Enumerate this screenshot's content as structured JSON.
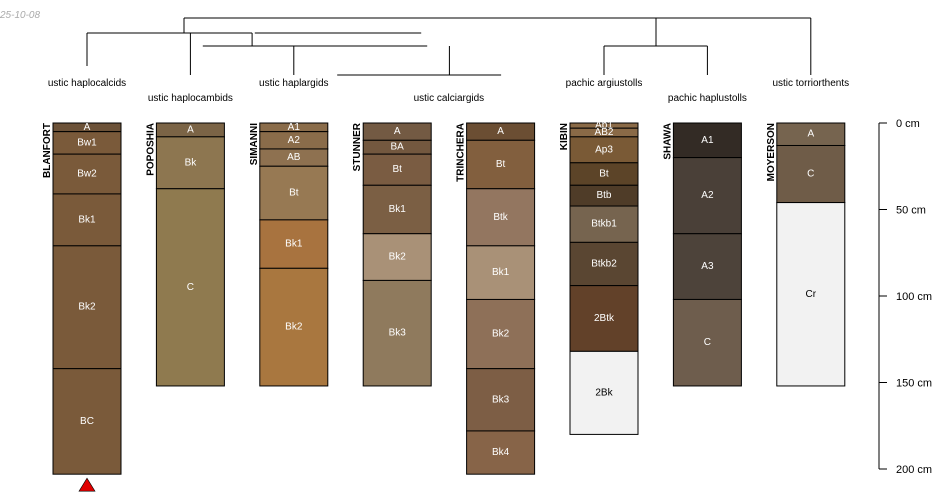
{
  "date_stamp": "25-10-08",
  "colors": {
    "dendrogram": "#000000",
    "outline": "#000000",
    "light_text": "#ffffff",
    "dark_text": "#000000",
    "bottom_marker": "#e00000"
  },
  "chart_data": {
    "type": "soil-profile-sketch",
    "title": "",
    "depth_unit": "cm",
    "depth_range": [
      0,
      200
    ],
    "depth_axis": {
      "ticks": [
        0,
        50,
        100,
        150,
        200
      ],
      "tick_labels": [
        "0 cm",
        "50 cm",
        "100 cm",
        "150 cm",
        "200 cm"
      ]
    },
    "groups": [
      {
        "name": "ustic haplocalcids",
        "members": [
          "BLANFORT"
        ]
      },
      {
        "name": "ustic haplocambids",
        "members": [
          "POPOSHIA"
        ]
      },
      {
        "name": "ustic haplargids",
        "members": [
          "SIMANNI"
        ]
      },
      {
        "name": "ustic calciargids",
        "members": [
          "STUNNER",
          "TRINCHERA"
        ]
      },
      {
        "name": "pachic argiustolls",
        "members": [
          "KIBIN"
        ]
      },
      {
        "name": "pachic haplustolls",
        "members": [
          "SHAWA"
        ]
      },
      {
        "name": "ustic torriorthents",
        "members": [
          "MOYERSON"
        ]
      }
    ],
    "profiles": [
      {
        "name": "BLANFORT",
        "bottom_marker": true,
        "horizons": [
          {
            "name": "A",
            "top": 0,
            "bottom": 5,
            "color": "#6c5238"
          },
          {
            "name": "Bw1",
            "top": 5,
            "bottom": 18,
            "color": "#7a5a3a"
          },
          {
            "name": "Bw2",
            "top": 18,
            "bottom": 41,
            "color": "#7a5a3a"
          },
          {
            "name": "Bk1",
            "top": 41,
            "bottom": 71,
            "color": "#7a5a3a"
          },
          {
            "name": "Bk2",
            "top": 71,
            "bottom": 142,
            "color": "#7a5a3a"
          },
          {
            "name": "BC",
            "top": 142,
            "bottom": 203,
            "color": "#7a5a3a"
          }
        ]
      },
      {
        "name": "POPOSHIA",
        "bottom_marker": false,
        "horizons": [
          {
            "name": "A",
            "top": 0,
            "bottom": 8,
            "color": "#7b6446"
          },
          {
            "name": "Bk",
            "top": 8,
            "bottom": 38,
            "color": "#8d7650"
          },
          {
            "name": "C",
            "top": 38,
            "bottom": 152,
            "color": "#8f7a4f"
          }
        ]
      },
      {
        "name": "SIMANNI",
        "bottom_marker": false,
        "horizons": [
          {
            "name": "A1",
            "top": 0,
            "bottom": 5,
            "color": "#8a6c4a"
          },
          {
            "name": "A2",
            "top": 5,
            "bottom": 15,
            "color": "#8a6c4a"
          },
          {
            "name": "AB",
            "top": 15,
            "bottom": 25,
            "color": "#8e7150"
          },
          {
            "name": "Bt",
            "top": 25,
            "bottom": 56,
            "color": "#977953"
          },
          {
            "name": "Bk1",
            "top": 56,
            "bottom": 84,
            "color": "#a8733f"
          },
          {
            "name": "Bk2",
            "top": 84,
            "bottom": 152,
            "color": "#a9773f"
          }
        ]
      },
      {
        "name": "STUNNER",
        "bottom_marker": false,
        "horizons": [
          {
            "name": "A",
            "top": 0,
            "bottom": 10,
            "color": "#735a43"
          },
          {
            "name": "BA",
            "top": 10,
            "bottom": 18,
            "color": "#73583f"
          },
          {
            "name": "Bt",
            "top": 18,
            "bottom": 36,
            "color": "#7a5c42"
          },
          {
            "name": "Bk1",
            "top": 36,
            "bottom": 64,
            "color": "#7b5f44"
          },
          {
            "name": "Bk2",
            "top": 64,
            "bottom": 91,
            "color": "#a99177"
          },
          {
            "name": "Bk3",
            "top": 91,
            "bottom": 152,
            "color": "#8f7a5d"
          }
        ]
      },
      {
        "name": "TRINCHERA",
        "bottom_marker": false,
        "horizons": [
          {
            "name": "A",
            "top": 0,
            "bottom": 10,
            "color": "#6b4e33"
          },
          {
            "name": "Bt",
            "top": 10,
            "bottom": 38,
            "color": "#825f3e"
          },
          {
            "name": "Btk",
            "top": 38,
            "bottom": 71,
            "color": "#937660"
          },
          {
            "name": "Bk1",
            "top": 71,
            "bottom": 102,
            "color": "#a99177"
          },
          {
            "name": "Bk2",
            "top": 102,
            "bottom": 142,
            "color": "#8e7058"
          },
          {
            "name": "Bk3",
            "top": 142,
            "bottom": 178,
            "color": "#7d5e45"
          },
          {
            "name": "Bk4",
            "top": 178,
            "bottom": 203,
            "color": "#876448"
          }
        ]
      },
      {
        "name": "KIBIN",
        "bottom_marker": false,
        "horizons": [
          {
            "name": "Ap1",
            "top": 0,
            "bottom": 3,
            "color": "#8a6a47"
          },
          {
            "name": "AB2",
            "top": 3,
            "bottom": 8,
            "color": "#8a6a47"
          },
          {
            "name": "Ap3",
            "top": 8,
            "bottom": 23,
            "color": "#7a5a36"
          },
          {
            "name": "Bt",
            "top": 23,
            "bottom": 36,
            "color": "#5c4428"
          },
          {
            "name": "Btb",
            "top": 36,
            "bottom": 48,
            "color": "#4f3c28"
          },
          {
            "name": "Btkb1",
            "top": 48,
            "bottom": 69,
            "color": "#76644f"
          },
          {
            "name": "Btkb2",
            "top": 69,
            "bottom": 94,
            "color": "#5a4632"
          },
          {
            "name": "2Btk",
            "top": 94,
            "bottom": 132,
            "color": "#624129"
          },
          {
            "name": "2Bk",
            "top": 132,
            "bottom": 180,
            "color": "#f2f2f2"
          }
        ]
      },
      {
        "name": "SHAWA",
        "bottom_marker": false,
        "horizons": [
          {
            "name": "A1",
            "top": 0,
            "bottom": 20,
            "color": "#332b25"
          },
          {
            "name": "A2",
            "top": 20,
            "bottom": 64,
            "color": "#4a4038"
          },
          {
            "name": "A3",
            "top": 64,
            "bottom": 102,
            "color": "#4d433a"
          },
          {
            "name": "C",
            "top": 102,
            "bottom": 152,
            "color": "#6e5d4d"
          }
        ]
      },
      {
        "name": "MOYERSON",
        "bottom_marker": false,
        "horizons": [
          {
            "name": "A",
            "top": 0,
            "bottom": 13,
            "color": "#76644f"
          },
          {
            "name": "C",
            "top": 13,
            "bottom": 46,
            "color": "#6f5c48"
          },
          {
            "name": "Cr",
            "top": 46,
            "bottom": 152,
            "color": "#f2f2f2"
          }
        ]
      }
    ]
  }
}
